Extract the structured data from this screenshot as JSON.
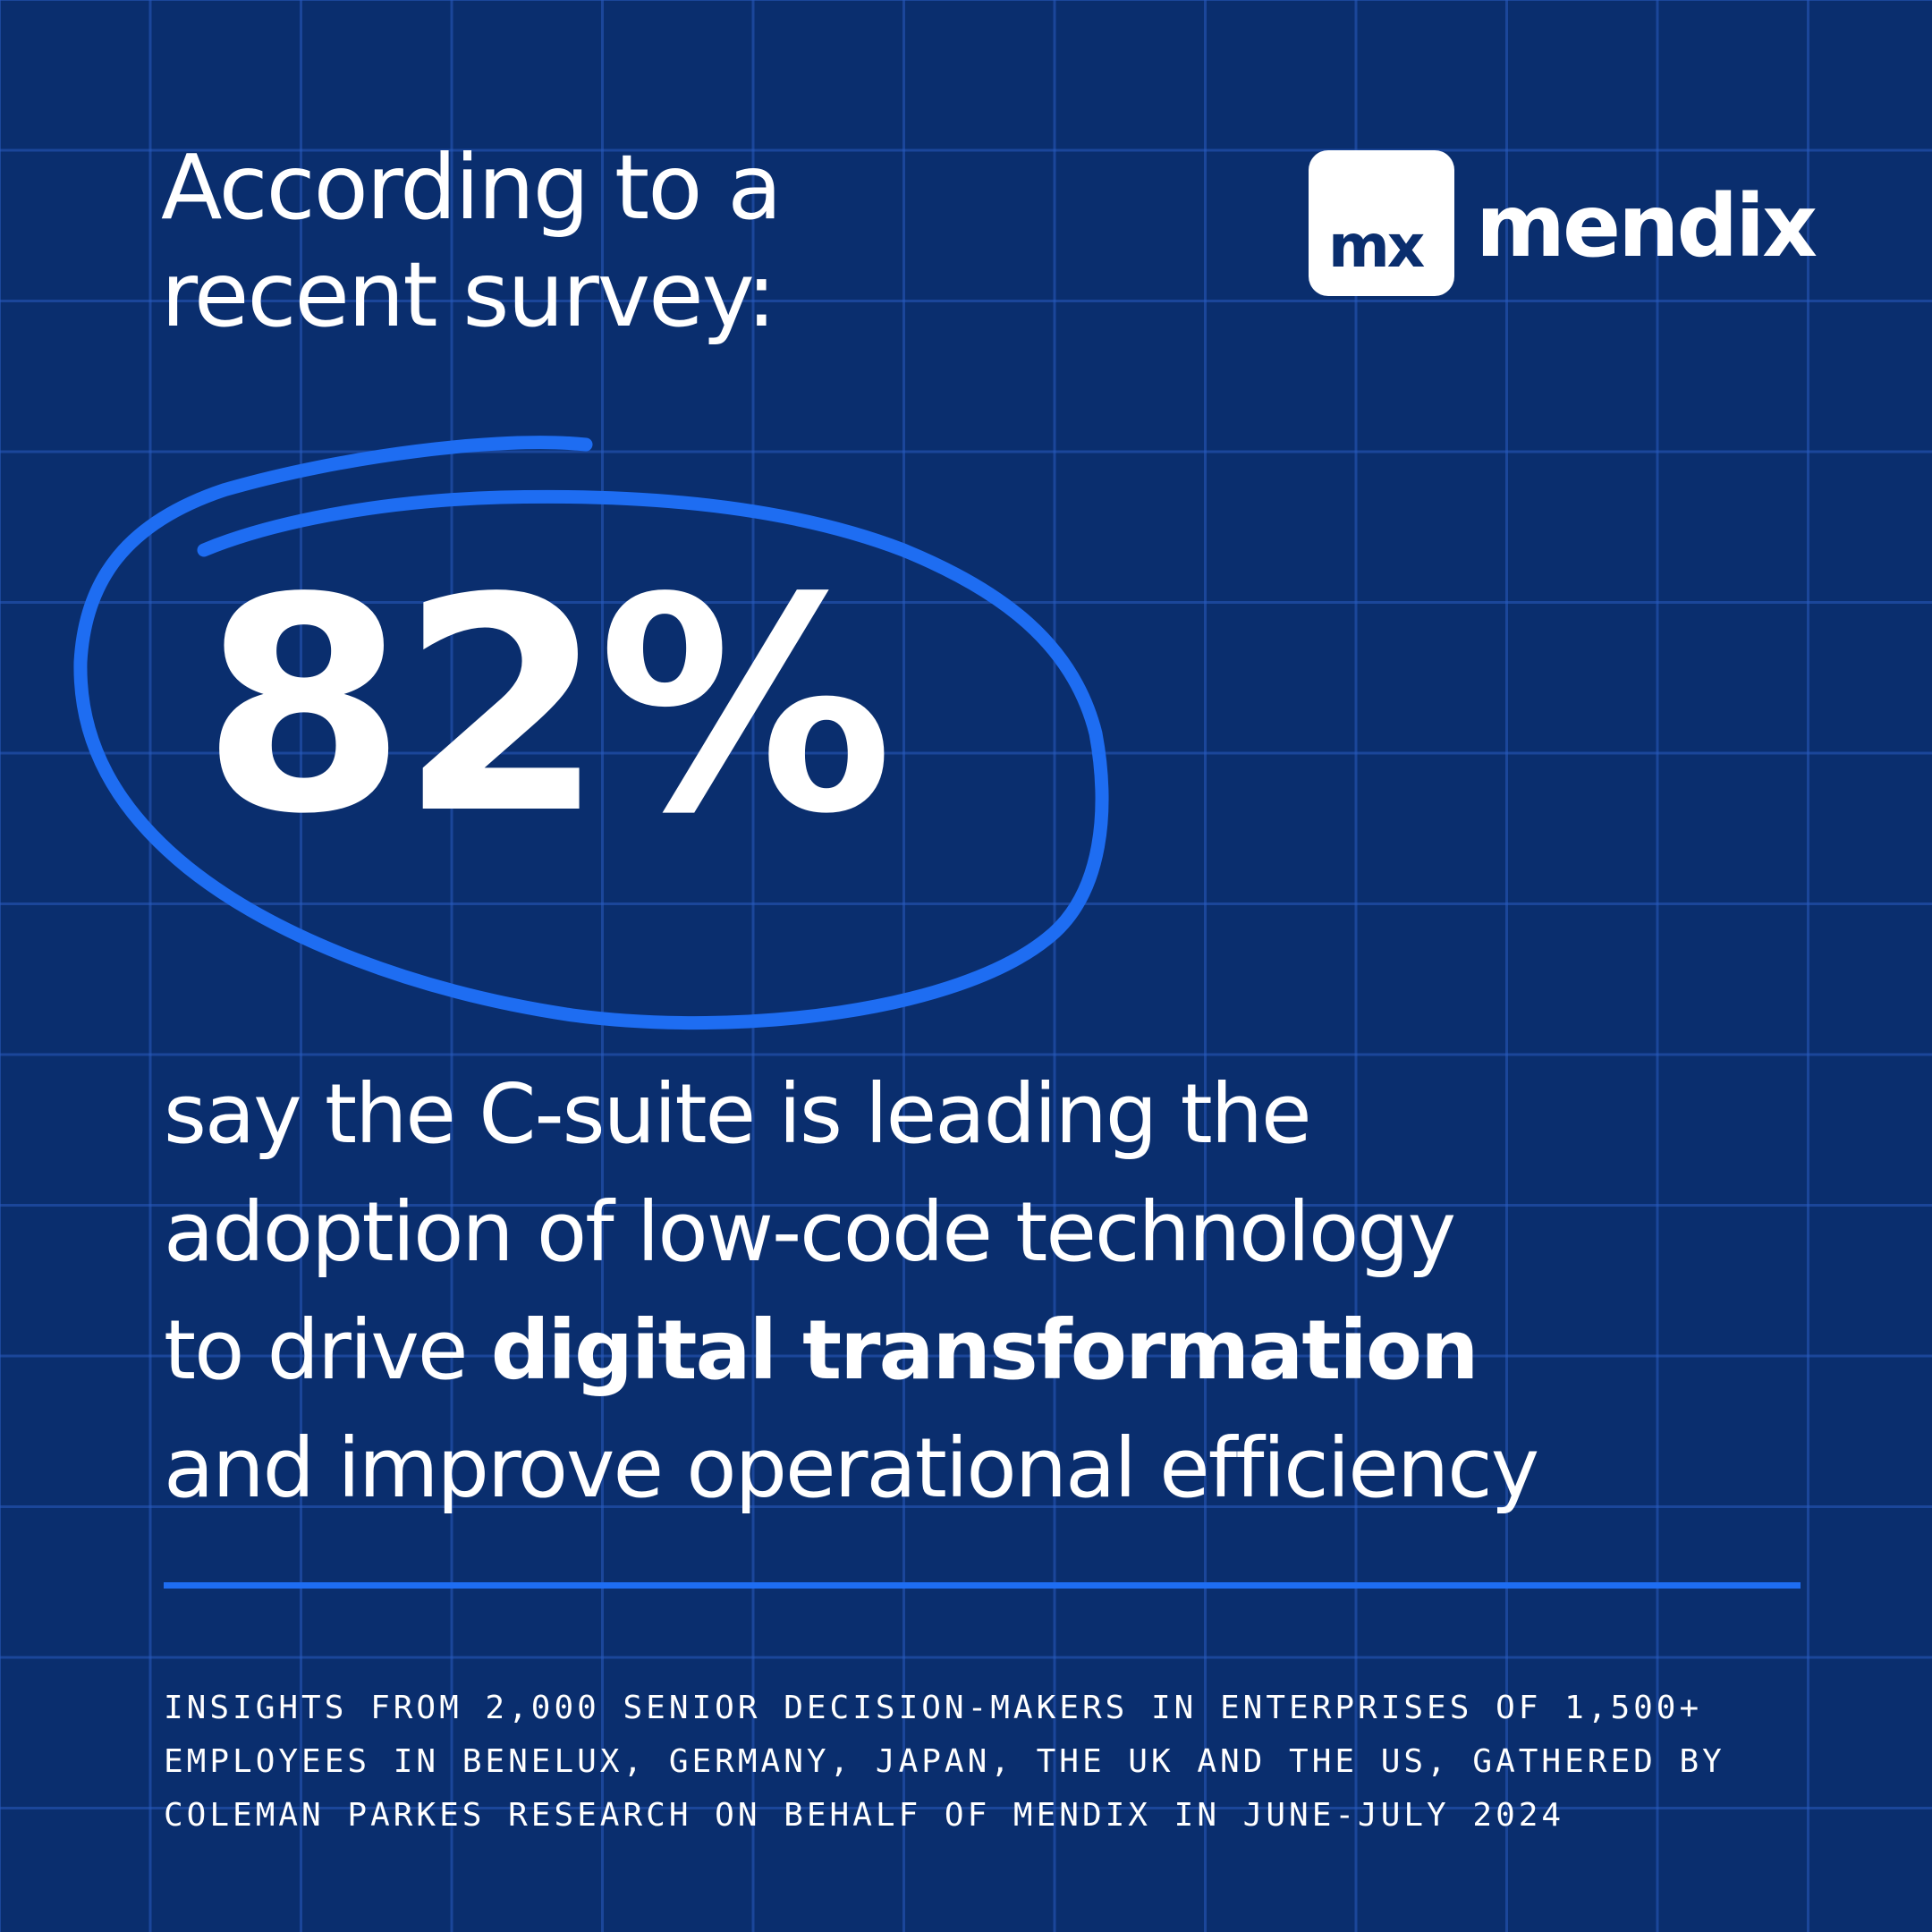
{
  "headline": {
    "line1": "According to a",
    "line2": "recent survey:"
  },
  "brand": {
    "mark_text": "mx",
    "wordmark": "mendix",
    "icon": "mendix-logo-icon"
  },
  "stat": {
    "value": "82%"
  },
  "statement": {
    "line1": "say the C-suite is leading the",
    "line2": "adoption of low-code technology",
    "line3_prefix": "to drive ",
    "line3_bold": "digital transformation",
    "line4": "and improve operational efficiency"
  },
  "footnote": {
    "line1": "INSIGHTS FROM 2,000 SENIOR DECISION-MAKERS IN ENTERPRISES OF 1,500+",
    "line2": "EMPLOYEES IN BENELUX, GERMANY, JAPAN, THE UK AND THE US, GATHERED BY",
    "line3": "COLEMAN PARKES RESEARCH ON BEHALF OF MENDIX IN JUNE-JULY 2024"
  },
  "colors": {
    "background": "#0a2e6e",
    "grid": "#285abe",
    "accent": "#1e6df2",
    "text": "#ffffff"
  }
}
